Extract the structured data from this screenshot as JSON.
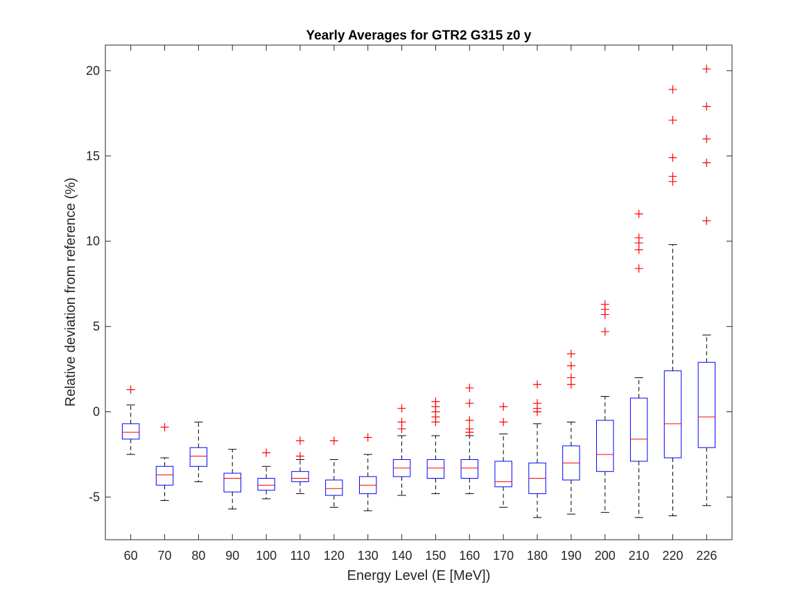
{
  "chart_data": {
    "type": "box",
    "title": "Yearly Averages for GTR2 G315 z0 y",
    "xlabel": "Energy Level (E [MeV])",
    "ylabel": "Relative deviation from reference (%)",
    "ylim": [
      -7.5,
      21.5
    ],
    "yticks": [
      -5,
      0,
      5,
      10,
      15,
      20
    ],
    "ytick_labels": [
      "-5",
      "0",
      "5",
      "10",
      "15",
      "20"
    ],
    "grid": false,
    "categories": [
      "60",
      "70",
      "80",
      "90",
      "100",
      "110",
      "120",
      "130",
      "140",
      "150",
      "160",
      "170",
      "180",
      "190",
      "200",
      "210",
      "220",
      "226"
    ],
    "boxes": [
      {
        "whisker_low": -2.5,
        "q1": -1.6,
        "median": -1.2,
        "q3": -0.7,
        "whisker_high": 0.4,
        "outliers": [
          1.3
        ]
      },
      {
        "whisker_low": -5.2,
        "q1": -4.3,
        "median": -3.7,
        "q3": -3.2,
        "whisker_high": -2.7,
        "outliers": [
          -0.9
        ]
      },
      {
        "whisker_low": -4.1,
        "q1": -3.2,
        "median": -2.6,
        "q3": -2.1,
        "whisker_high": -0.6,
        "outliers": []
      },
      {
        "whisker_low": -5.7,
        "q1": -4.7,
        "median": -3.9,
        "q3": -3.6,
        "whisker_high": -2.2,
        "outliers": []
      },
      {
        "whisker_low": -5.1,
        "q1": -4.6,
        "median": -4.3,
        "q3": -3.9,
        "whisker_high": -3.2,
        "outliers": [
          -2.4
        ]
      },
      {
        "whisker_low": -4.8,
        "q1": -4.1,
        "median": -3.9,
        "q3": -3.5,
        "whisker_high": -2.8,
        "outliers": [
          -2.6,
          -1.7
        ]
      },
      {
        "whisker_low": -5.6,
        "q1": -4.9,
        "median": -4.5,
        "q3": -4.0,
        "whisker_high": -2.8,
        "outliers": [
          -1.7
        ]
      },
      {
        "whisker_low": -5.8,
        "q1": -4.8,
        "median": -4.3,
        "q3": -3.8,
        "whisker_high": -2.5,
        "outliers": [
          -1.5
        ]
      },
      {
        "whisker_low": -4.9,
        "q1": -3.8,
        "median": -3.3,
        "q3": -2.8,
        "whisker_high": -1.4,
        "outliers": [
          -1.0,
          -0.6,
          0.2
        ]
      },
      {
        "whisker_low": -4.8,
        "q1": -3.9,
        "median": -3.3,
        "q3": -2.8,
        "whisker_high": -1.4,
        "outliers": [
          -0.6,
          -0.3,
          0.0,
          0.3,
          0.6
        ]
      },
      {
        "whisker_low": -4.8,
        "q1": -3.9,
        "median": -3.3,
        "q3": -2.8,
        "whisker_high": -1.4,
        "outliers": [
          -1.2,
          -1.0,
          -0.5,
          0.5,
          1.4
        ]
      },
      {
        "whisker_low": -5.6,
        "q1": -4.4,
        "median": -4.1,
        "q3": -2.9,
        "whisker_high": -1.3,
        "outliers": [
          -0.6,
          0.3
        ]
      },
      {
        "whisker_low": -6.2,
        "q1": -4.8,
        "median": -3.9,
        "q3": -3.0,
        "whisker_high": -0.7,
        "outliers": [
          0.0,
          0.2,
          0.5,
          1.6
        ]
      },
      {
        "whisker_low": -6.0,
        "q1": -4.0,
        "median": -3.0,
        "q3": -2.0,
        "whisker_high": -0.6,
        "outliers": [
          1.6,
          2.0,
          2.7,
          3.4
        ]
      },
      {
        "whisker_low": -5.9,
        "q1": -3.5,
        "median": -2.5,
        "q3": -0.5,
        "whisker_high": 0.9,
        "outliers": [
          4.7,
          5.7,
          6.0,
          6.3
        ]
      },
      {
        "whisker_low": -6.2,
        "q1": -2.9,
        "median": -1.6,
        "q3": 0.8,
        "whisker_high": 2.0,
        "outliers": [
          8.4,
          9.5,
          9.9,
          10.2,
          11.6
        ]
      },
      {
        "whisker_low": -6.1,
        "q1": -2.7,
        "median": -0.7,
        "q3": 2.4,
        "whisker_high": 9.8,
        "outliers": [
          13.5,
          13.8,
          14.9,
          17.1,
          18.9
        ]
      },
      {
        "whisker_low": -5.5,
        "q1": -2.1,
        "median": -0.3,
        "q3": 2.9,
        "whisker_high": 4.5,
        "outliers": [
          11.2,
          14.6,
          16.0,
          17.9,
          20.1
        ]
      }
    ],
    "colors": {
      "box": "#0000ff",
      "median": "#ff0000",
      "whisker": "#000000",
      "outlier": "#ff0000",
      "axes": "#262626"
    }
  }
}
